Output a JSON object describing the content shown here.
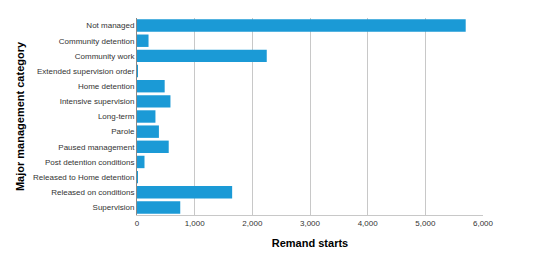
{
  "chart_data": {
    "type": "bar",
    "orientation": "horizontal",
    "xlabel": "Remand starts",
    "ylabel": "Major management category",
    "categories": [
      "Not managed",
      "Community detention",
      "Community work",
      "Extended supervision order",
      "Home detention",
      "Intensive supervision",
      "Long-term",
      "Parole",
      "Paused management",
      "Post detention conditions",
      "Released to Home detention",
      "Released on conditions",
      "Supervision"
    ],
    "values": [
      5700,
      200,
      2250,
      10,
      480,
      580,
      320,
      380,
      550,
      130,
      10,
      1650,
      750
    ],
    "color": "#1b9ad6",
    "xlim": [
      0,
      6000
    ],
    "xticks": [
      0,
      {
        "value": 1000,
        "label": "1,000"
      },
      {
        "value": 2000,
        "label": "2,000"
      },
      {
        "value": 3000,
        "label": "3,000"
      },
      {
        "value": 4000,
        "label": "4,000"
      },
      {
        "value": 5000,
        "label": "5,000"
      },
      {
        "value": 6000,
        "label": "6,000"
      }
    ],
    "grid": true
  }
}
